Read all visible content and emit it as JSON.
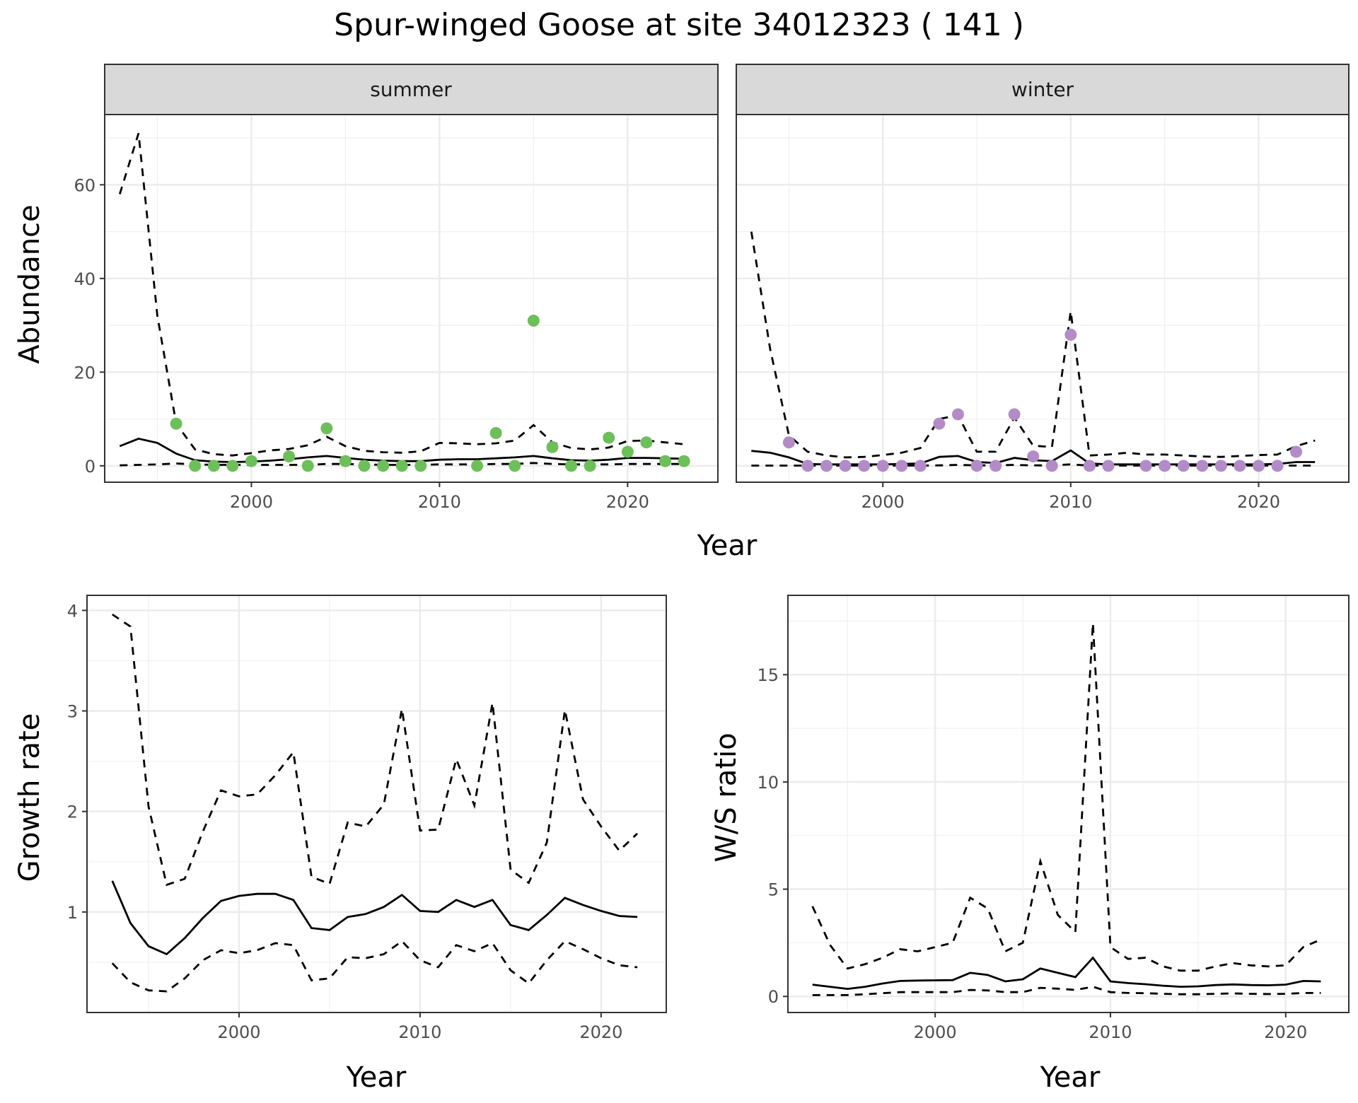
{
  "title": "Spur-winged Goose at site 34012323 ( 141 )",
  "colors": {
    "summer": "#6dbf59",
    "winter": "#b38bc7",
    "line": "#000000"
  },
  "chart_data": [
    {
      "type": "line",
      "name": "abundance",
      "facets": [
        "summer",
        "winter"
      ],
      "xlabel": "Year",
      "ylabel": "Abundance",
      "xlim": [
        1992.2,
        2024.8
      ],
      "ylim": [
        -3.5,
        75
      ],
      "xticks": [
        2000,
        2010,
        2020
      ],
      "yticks": [
        0,
        20,
        40,
        60
      ],
      "grid": true,
      "panels": [
        {
          "facet": "summer",
          "x": [
            1993,
            1994,
            1995,
            1996,
            1997,
            1998,
            1999,
            2000,
            2001,
            2002,
            2003,
            2004,
            2005,
            2006,
            2007,
            2008,
            2009,
            2010,
            2011,
            2012,
            2013,
            2014,
            2015,
            2016,
            2017,
            2018,
            2019,
            2020,
            2021,
            2022,
            2023
          ],
          "estimate": [
            4.2,
            5.8,
            4.9,
            2.6,
            1.2,
            0.9,
            0.8,
            0.9,
            1.1,
            1.4,
            1.8,
            2.1,
            1.7,
            1.3,
            1.1,
            1.0,
            1.0,
            1.3,
            1.4,
            1.4,
            1.6,
            1.8,
            2.1,
            1.6,
            1.2,
            1.1,
            1.3,
            1.7,
            1.7,
            1.6,
            1.5
          ],
          "upper": [
            58,
            71,
            32,
            9,
            3.5,
            2.5,
            2.2,
            2.7,
            3.3,
            3.6,
            4.4,
            6.2,
            4.2,
            3.2,
            2.9,
            2.8,
            3.1,
            4.9,
            4.8,
            4.6,
            4.8,
            5.4,
            8.7,
            5.0,
            3.8,
            3.5,
            3.9,
            5.3,
            5.4,
            5.0,
            4.6
          ],
          "lower": [
            0.1,
            0.2,
            0.3,
            0.5,
            0.3,
            0.2,
            0.2,
            0.2,
            0.2,
            0.2,
            0.2,
            0.4,
            0.4,
            0.3,
            0.2,
            0.2,
            0.2,
            0.3,
            0.3,
            0.3,
            0.4,
            0.4,
            0.6,
            0.4,
            0.3,
            0.3,
            0.3,
            0.4,
            0.4,
            0.4,
            0.4
          ],
          "observed_x": [
            1996,
            1997,
            1998,
            1999,
            2000,
            2002,
            2003,
            2004,
            2005,
            2006,
            2007,
            2008,
            2009,
            2012,
            2013,
            2014,
            2015,
            2016,
            2017,
            2018,
            2019,
            2020,
            2021,
            2022,
            2023
          ],
          "observed_y": [
            9,
            0,
            0,
            0,
            1,
            2,
            0,
            8,
            1,
            0,
            0,
            0,
            0,
            0,
            7,
            0,
            31,
            4,
            0,
            0,
            6,
            3,
            5,
            1,
            1
          ]
        },
        {
          "facet": "winter",
          "x": [
            1993,
            1994,
            1995,
            1996,
            1997,
            1998,
            1999,
            2000,
            2001,
            2002,
            2003,
            2004,
            2005,
            2006,
            2007,
            2008,
            2009,
            2010,
            2011,
            2012,
            2013,
            2014,
            2015,
            2016,
            2017,
            2018,
            2019,
            2020,
            2021,
            2022,
            2023
          ],
          "estimate": [
            3.2,
            2.8,
            1.8,
            0.4,
            0.3,
            0.3,
            0.3,
            0.3,
            0.4,
            0.5,
            1.9,
            2.1,
            0.8,
            0.6,
            1.7,
            1.2,
            1.0,
            3.3,
            0.5,
            0.3,
            0.3,
            0.3,
            0.3,
            0.3,
            0.3,
            0.3,
            0.3,
            0.3,
            0.4,
            0.8,
            0.8
          ],
          "upper": [
            50,
            25,
            6.5,
            3.0,
            2.2,
            1.8,
            1.9,
            2.3,
            2.8,
            3.8,
            10,
            10.8,
            3.0,
            3.0,
            10.3,
            4.3,
            4.0,
            33,
            2.2,
            2.4,
            2.8,
            2.4,
            2.4,
            2.2,
            2.0,
            1.9,
            2.1,
            2.3,
            2.4,
            4.2,
            5.4
          ],
          "lower": [
            0.05,
            0.05,
            0.05,
            0.05,
            0.05,
            0.05,
            0.05,
            0.05,
            0.05,
            0.05,
            0.1,
            0.2,
            0.1,
            0.1,
            0.2,
            0.1,
            0.1,
            0.3,
            0.05,
            0.05,
            0.05,
            0.05,
            0.05,
            0.05,
            0.05,
            0.05,
            0.05,
            0.05,
            0.05,
            0.05,
            0.05
          ],
          "observed_x": [
            1995,
            1996,
            1997,
            1998,
            1999,
            2000,
            2001,
            2002,
            2003,
            2004,
            2005,
            2006,
            2007,
            2008,
            2009,
            2010,
            2011,
            2012,
            2014,
            2015,
            2016,
            2017,
            2018,
            2019,
            2020,
            2021,
            2022
          ],
          "observed_y": [
            5,
            0,
            0,
            0,
            0,
            0,
            0,
            0,
            9,
            11,
            0,
            0,
            11,
            2,
            0,
            28,
            0,
            0,
            0,
            0,
            0,
            0,
            0,
            0,
            0,
            0,
            3
          ]
        }
      ]
    },
    {
      "type": "line",
      "name": "growth_rate",
      "xlabel": "Year",
      "ylabel": "Growth rate",
      "xlim": [
        1991.6,
        2023.6
      ],
      "ylim": [
        0,
        4.15
      ],
      "xticks": [
        2000,
        2010,
        2020
      ],
      "yticks": [
        1,
        2,
        3,
        4
      ],
      "grid": true,
      "x": [
        1993,
        1994,
        1995,
        1996,
        1997,
        1998,
        1999,
        2000,
        2001,
        2002,
        2003,
        2004,
        2005,
        2006,
        2007,
        2008,
        2009,
        2010,
        2011,
        2012,
        2013,
        2014,
        2015,
        2016,
        2017,
        2018,
        2019,
        2020,
        2021,
        2022
      ],
      "estimate": [
        1.31,
        0.89,
        0.66,
        0.58,
        0.74,
        0.94,
        1.11,
        1.16,
        1.18,
        1.18,
        1.12,
        0.84,
        0.82,
        0.95,
        0.98,
        1.05,
        1.17,
        1.01,
        1.0,
        1.12,
        1.05,
        1.12,
        0.87,
        0.82,
        0.97,
        1.14,
        1.07,
        1.01,
        0.96,
        0.95
      ],
      "upper": [
        3.96,
        3.84,
        2.05,
        1.27,
        1.33,
        1.8,
        2.21,
        2.15,
        2.17,
        2.36,
        2.59,
        1.35,
        1.28,
        1.89,
        1.85,
        2.07,
        3.02,
        1.81,
        1.82,
        2.52,
        2.06,
        3.08,
        1.42,
        1.29,
        1.69,
        3.01,
        2.12,
        1.85,
        1.61,
        1.78
      ],
      "lower": [
        0.49,
        0.3,
        0.22,
        0.21,
        0.34,
        0.52,
        0.62,
        0.59,
        0.62,
        0.69,
        0.67,
        0.32,
        0.34,
        0.55,
        0.54,
        0.58,
        0.71,
        0.52,
        0.45,
        0.67,
        0.61,
        0.69,
        0.42,
        0.29,
        0.52,
        0.71,
        0.63,
        0.54,
        0.47,
        0.45
      ]
    },
    {
      "type": "line",
      "name": "ws_ratio",
      "xlabel": "Year",
      "ylabel": "W/S ratio",
      "xlim": [
        1991.6,
        2023.6
      ],
      "ylim": [
        -0.75,
        18.7
      ],
      "xticks": [
        2000,
        2010,
        2020
      ],
      "yticks": [
        0,
        5,
        10,
        15
      ],
      "grid": true,
      "x": [
        1993,
        1994,
        1995,
        1996,
        1997,
        1998,
        1999,
        2000,
        2001,
        2002,
        2003,
        2004,
        2005,
        2006,
        2007,
        2008,
        2009,
        2010,
        2011,
        2012,
        2013,
        2014,
        2015,
        2016,
        2017,
        2018,
        2019,
        2020,
        2021,
        2022
      ],
      "estimate": [
        0.55,
        0.45,
        0.35,
        0.45,
        0.6,
        0.72,
        0.74,
        0.75,
        0.76,
        1.1,
        1.0,
        0.7,
        0.8,
        1.3,
        1.1,
        0.9,
        1.8,
        0.7,
        0.62,
        0.57,
        0.5,
        0.45,
        0.47,
        0.53,
        0.56,
        0.53,
        0.52,
        0.55,
        0.72,
        0.7
      ],
      "upper": [
        4.2,
        2.4,
        1.3,
        1.5,
        1.8,
        2.2,
        2.1,
        2.3,
        2.5,
        4.6,
        4.1,
        2.1,
        2.5,
        6.3,
        3.8,
        3.0,
        17.4,
        2.3,
        1.75,
        1.8,
        1.4,
        1.2,
        1.2,
        1.4,
        1.55,
        1.45,
        1.4,
        1.45,
        2.3,
        2.65
      ],
      "lower": [
        0.06,
        0.06,
        0.06,
        0.1,
        0.15,
        0.2,
        0.2,
        0.2,
        0.2,
        0.3,
        0.28,
        0.2,
        0.2,
        0.4,
        0.36,
        0.3,
        0.45,
        0.2,
        0.16,
        0.15,
        0.12,
        0.1,
        0.1,
        0.12,
        0.14,
        0.12,
        0.11,
        0.12,
        0.16,
        0.16
      ]
    }
  ]
}
